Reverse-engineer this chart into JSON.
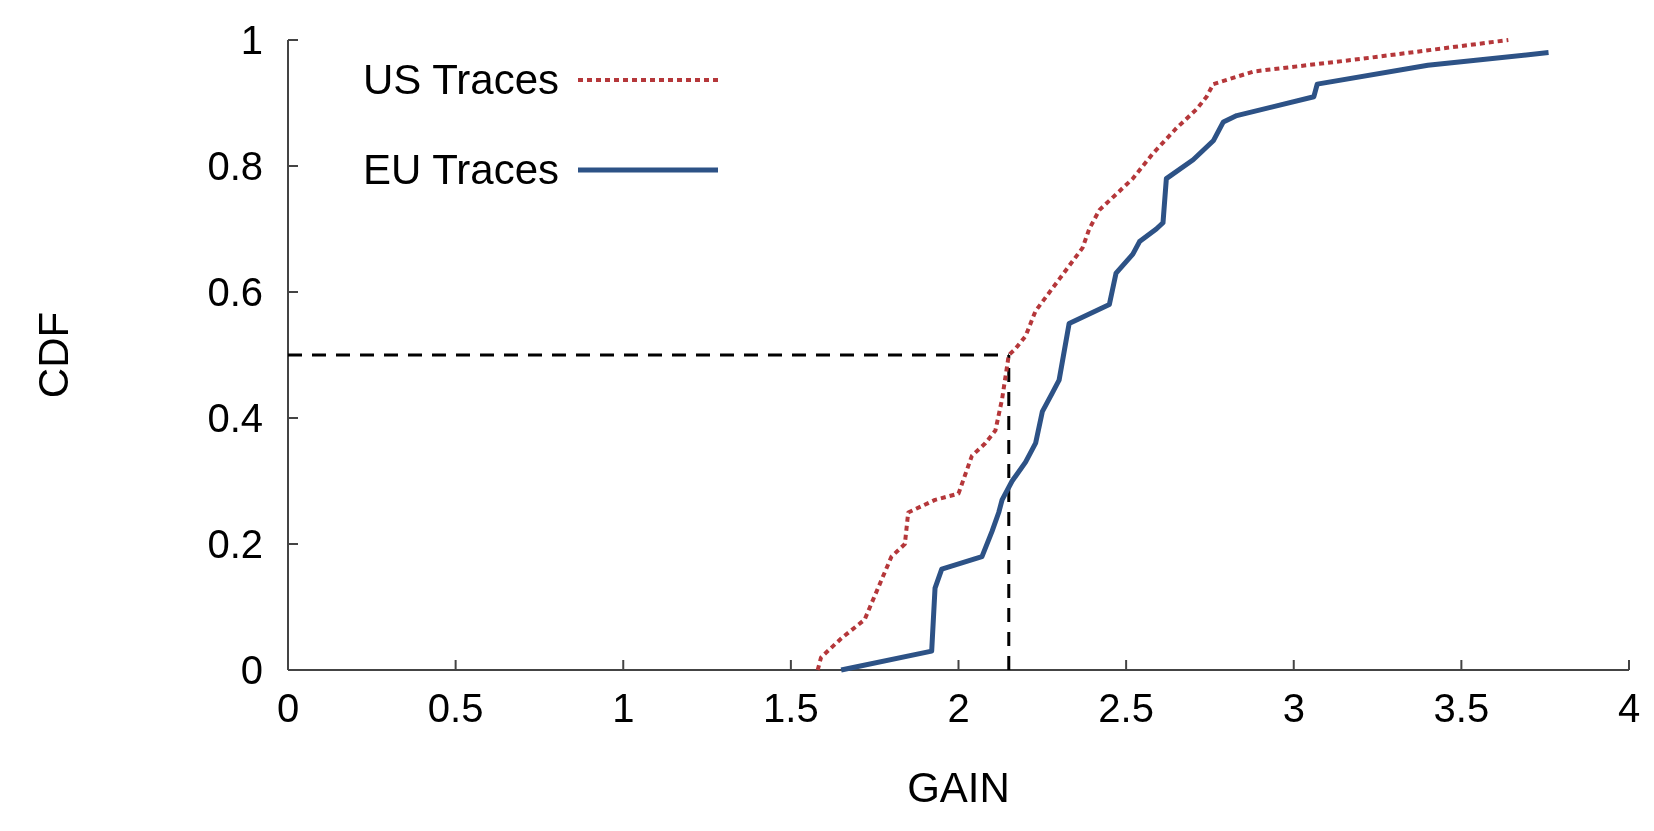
{
  "chart_data": {
    "type": "line",
    "xlabel": "GAIN",
    "ylabel": "CDF",
    "xlim": [
      0,
      4
    ],
    "ylim": [
      0,
      1
    ],
    "xticks": [
      0,
      0.5,
      1,
      1.5,
      2,
      2.5,
      3,
      3.5,
      4
    ],
    "yticks": [
      0,
      0.2,
      0.4,
      0.6,
      0.8,
      1
    ],
    "grid": false,
    "legend": "top left",
    "series": [
      {
        "name": "US Traces",
        "color": "#b5373a",
        "line_style": "dotted",
        "x": [
          1.58,
          1.59,
          1.65,
          1.72,
          1.76,
          1.8,
          1.84,
          1.85,
          1.93,
          2.0,
          2.04,
          2.08,
          2.11,
          2.13,
          2.15,
          2.17,
          2.2,
          2.23,
          2.3,
          2.37,
          2.39,
          2.42,
          2.52,
          2.58,
          2.65,
          2.71,
          2.74,
          2.76,
          2.88,
          3.2,
          3.64
        ],
        "values": [
          0,
          0.02,
          0.05,
          0.08,
          0.13,
          0.18,
          0.2,
          0.25,
          0.27,
          0.28,
          0.34,
          0.36,
          0.38,
          0.43,
          0.5,
          0.51,
          0.53,
          0.57,
          0.62,
          0.67,
          0.7,
          0.73,
          0.78,
          0.82,
          0.86,
          0.89,
          0.91,
          0.93,
          0.95,
          0.97,
          1.0
        ]
      },
      {
        "name": "EU Traces",
        "color": "#2d5286",
        "line_style": "solid",
        "x": [
          1.65,
          1.92,
          1.93,
          1.95,
          2.07,
          2.1,
          2.12,
          2.13,
          2.16,
          2.2,
          2.23,
          2.25,
          2.28,
          2.3,
          2.33,
          2.45,
          2.47,
          2.52,
          2.54,
          2.59,
          2.61,
          2.62,
          2.7,
          2.76,
          2.79,
          2.83,
          3.06,
          3.07,
          3.4,
          3.76
        ],
        "values": [
          0,
          0.03,
          0.13,
          0.16,
          0.18,
          0.22,
          0.25,
          0.27,
          0.3,
          0.33,
          0.36,
          0.41,
          0.44,
          0.46,
          0.55,
          0.58,
          0.63,
          0.66,
          0.68,
          0.7,
          0.71,
          0.78,
          0.81,
          0.84,
          0.87,
          0.88,
          0.91,
          0.93,
          0.96,
          0.98
        ]
      }
    ],
    "ref_lines": [
      {
        "axis": "x",
        "value": 2.15,
        "color": "#000000",
        "line_style": "dashed"
      },
      {
        "axis": "y",
        "value": 0.5,
        "color": "#000000",
        "line_style": "dashed"
      }
    ]
  }
}
